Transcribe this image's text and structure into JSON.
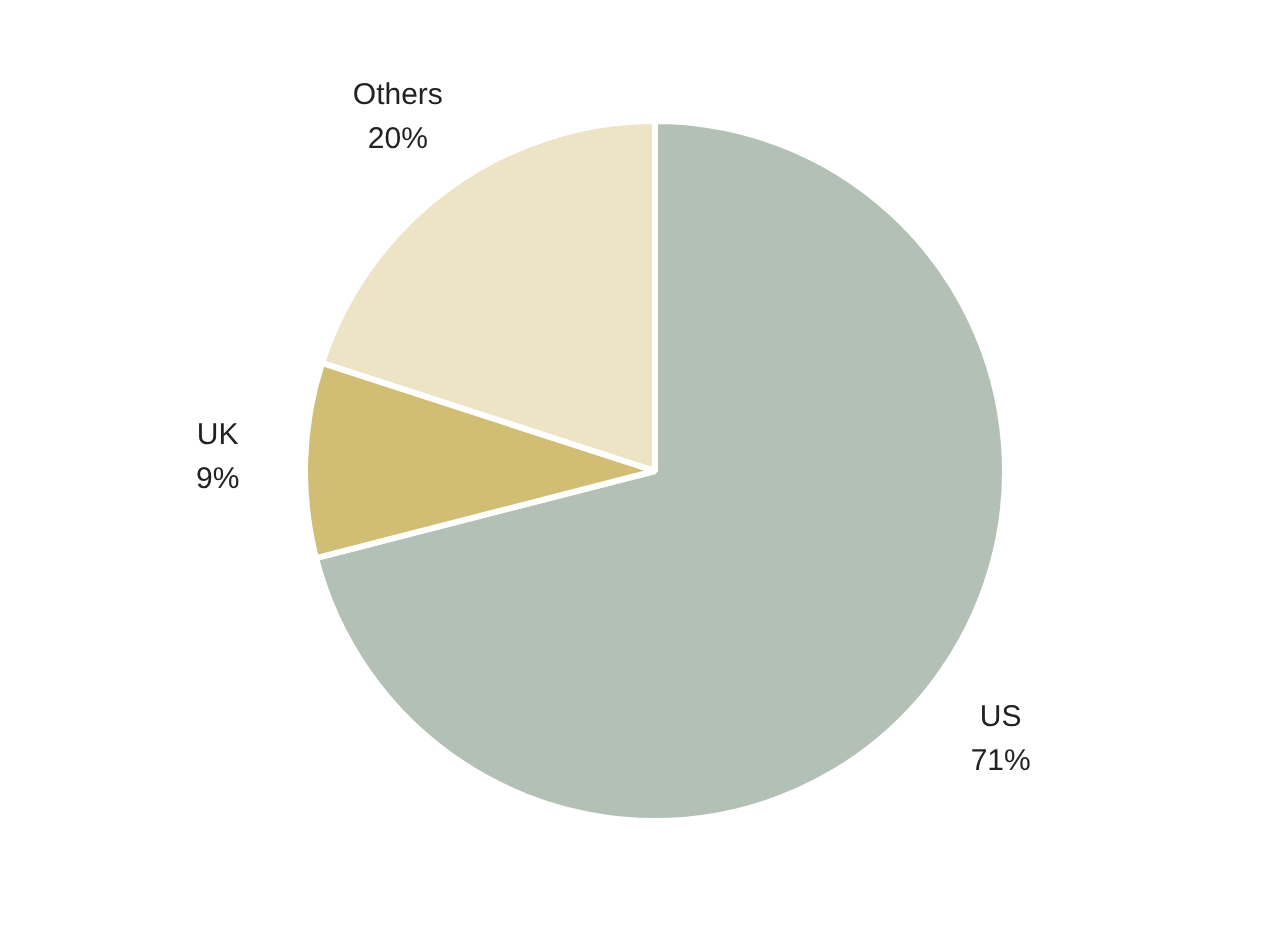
{
  "chart_data": {
    "type": "pie",
    "categories": [
      "US",
      "UK",
      "Others"
    ],
    "values": [
      71,
      9,
      20
    ],
    "colors": [
      "#b3c0b5",
      "#d1bd74",
      "#ede3c5"
    ],
    "value_labels": [
      "71%",
      "9%",
      "20%"
    ]
  }
}
